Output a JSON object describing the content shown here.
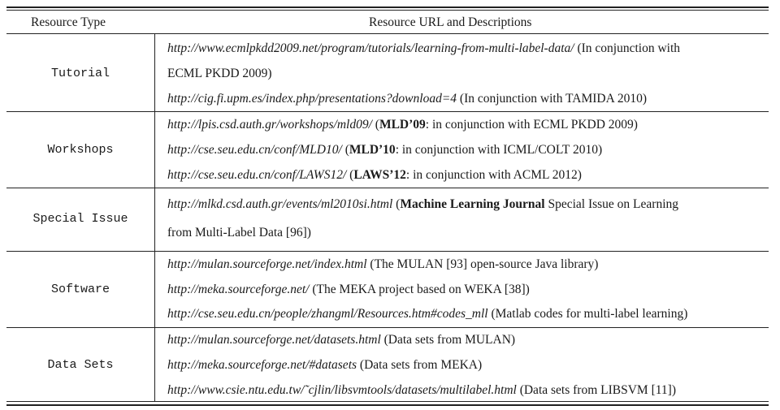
{
  "table": {
    "headers": {
      "type": "Resource Type",
      "url": "Resource URL and Descriptions"
    },
    "groups": [
      {
        "type": "Tutorial",
        "entries": [
          {
            "url": "http://www.ecmlpkdd2009.net/program/tutorials/learning-from-multi-label-data/",
            "desc_part1": " (In conjunction with",
            "desc_part2": "ECML PKDD 2009)"
          },
          {
            "url": "http://cig.fi.upm.es/index.php/presentations?download=4",
            "desc": " (In conjunction with TAMIDA 2010)"
          }
        ]
      },
      {
        "type": "Workshops",
        "entries": [
          {
            "url": "http://lpis.csd.auth.gr/workshops/mld09/",
            "open": " (",
            "bold": "MLD’09",
            "desc": ": in conjunction with ECML PKDD 2009)"
          },
          {
            "url": "http://cse.seu.edu.cn/conf/MLD10/",
            "open": " (",
            "bold": "MLD’10",
            "desc": ": in conjunction with ICML/COLT 2010)"
          },
          {
            "url": "http://cse.seu.edu.cn/conf/LAWS12/",
            "open": " (",
            "bold": "LAWS’12",
            "desc": ": in conjunction with ACML 2012)"
          }
        ]
      },
      {
        "type": "Special Issue",
        "entries": [
          {
            "url": "http://mlkd.csd.auth.gr/events/ml2010si.html",
            "open": " (",
            "bold": "Machine Learning Journal",
            "desc_part1": " Special Issue on Learning",
            "desc_part2": "from Multi-Label Data [96])"
          }
        ]
      },
      {
        "type": "Software",
        "entries": [
          {
            "url": "http://mulan.sourceforge.net/index.html",
            "desc": " (The MULAN [93] open-source Java library)"
          },
          {
            "url": "http://meka.sourceforge.net/",
            "desc": " (The MEKA project based on WEKA [38])"
          },
          {
            "url": "http://cse.seu.edu.cn/people/zhangml/Resources.htm#codes_mll",
            "desc": " (Matlab codes for multi-label learning)"
          }
        ]
      },
      {
        "type": "Data Sets",
        "entries": [
          {
            "url": "http://mulan.sourceforge.net/datasets.html",
            "desc": " (Data sets from MULAN)"
          },
          {
            "url": "http://meka.sourceforge.net/#datasets",
            "desc": " (Data sets from MEKA)"
          },
          {
            "url": "http://www.csie.ntu.edu.tw/˜cjlin/libsvmtools/datasets/multilabel.html",
            "desc": " (Data sets from LIBSVM [11])"
          }
        ]
      }
    ]
  }
}
